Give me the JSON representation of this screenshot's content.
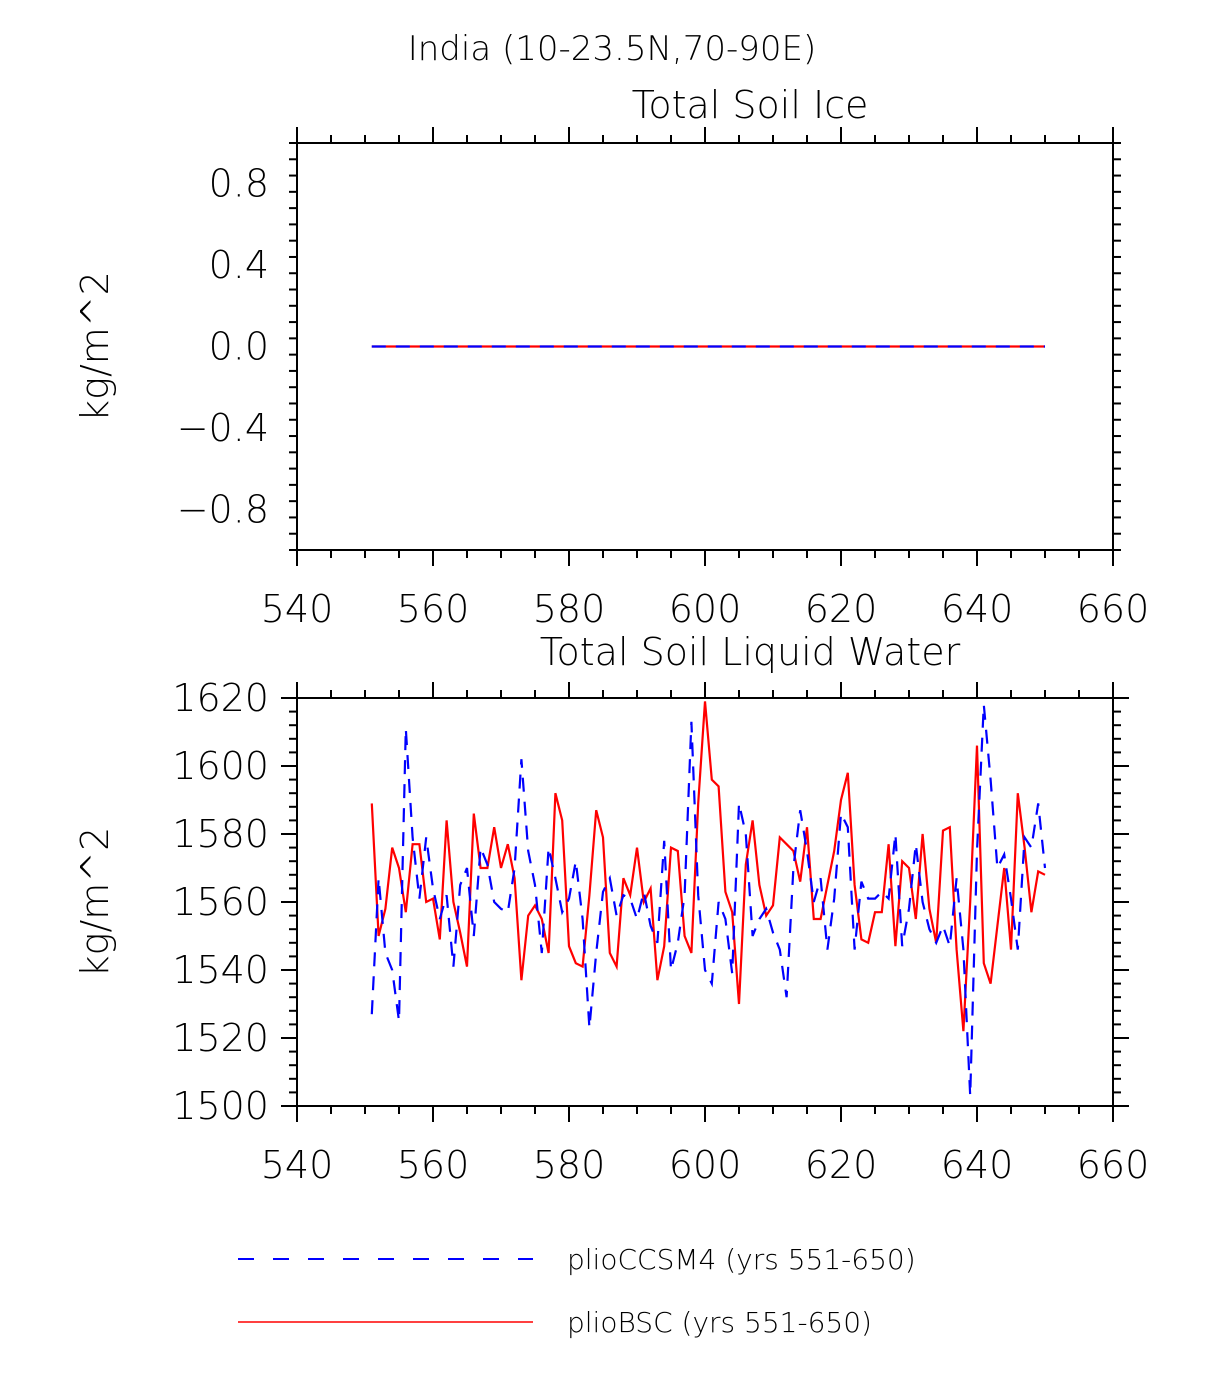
{
  "title": "India (10-23.5N,70-90E)",
  "colors": {
    "pliocesm4": "#0000ff",
    "pliobsc": "#ff0000",
    "axis": "#000000"
  },
  "legend": [
    {
      "label": "plioCCSM4 (yrs 551-650)",
      "color": "#0000ff",
      "dash": "dashed"
    },
    {
      "label": "plioBSC (yrs 551-650)",
      "color": "#ff0000",
      "dash": "solid"
    }
  ],
  "chart_data": [
    {
      "type": "line",
      "title": "Total Soil Ice",
      "ylabel": "kg/m^2",
      "xlabel": "",
      "xlim": [
        540,
        660
      ],
      "ylim": [
        -1.0,
        1.0
      ],
      "x_ticks": [
        540,
        560,
        580,
        600,
        620,
        640,
        660
      ],
      "x_tick_labels": [
        "540",
        "560",
        "580",
        "600",
        "620",
        "640",
        "660"
      ],
      "y_ticks": [
        0.8,
        0.4,
        0.0,
        -0.4,
        -0.8
      ],
      "y_tick_labels": [
        "0.8",
        "0.4",
        "0.0",
        "−0.4",
        "−0.8"
      ],
      "x_range": [
        551,
        650
      ],
      "series": [
        {
          "name": "plioBSC (yrs 551-650)",
          "constant": 0.0
        },
        {
          "name": "plioCCSM4 (yrs 551-650)",
          "constant": 0.0
        }
      ]
    },
    {
      "type": "line",
      "title": "Total Soil Liquid Water",
      "ylabel": "kg/m^2",
      "xlabel": "",
      "xlim": [
        540,
        660
      ],
      "ylim": [
        1500,
        1620
      ],
      "x_ticks": [
        540,
        560,
        580,
        600,
        620,
        640,
        660
      ],
      "x_tick_labels": [
        "540",
        "560",
        "580",
        "600",
        "620",
        "640",
        "660"
      ],
      "y_ticks": [
        1620,
        1600,
        1580,
        1560,
        1540,
        1520,
        1500
      ],
      "y_tick_labels": [
        "1620",
        "1600",
        "1580",
        "1560",
        "1540",
        "1520",
        "1500"
      ],
      "x_start": 551,
      "series": [
        {
          "name": "plioBSC (yrs 551-650)",
          "values": [
            1589,
            1550,
            1558,
            1576,
            1570,
            1557,
            1577,
            1577,
            1560,
            1561,
            1549,
            1584,
            1560,
            1551,
            1541,
            1586,
            1570,
            1570,
            1582,
            1570,
            1577,
            1567,
            1537,
            1556,
            1559,
            1555,
            1545,
            1592,
            1584,
            1547,
            1542,
            1541,
            1562,
            1587,
            1579,
            1545,
            1541,
            1567,
            1562,
            1576,
            1560,
            1564,
            1537,
            1547,
            1576,
            1575,
            1550,
            1545,
            1589,
            1619,
            1596,
            1594,
            1563,
            1557,
            1530,
            1571,
            1584,
            1565,
            1556,
            1559,
            1579,
            1577,
            1575,
            1566,
            1582,
            1555,
            1555,
            1565,
            1575,
            1590,
            1598,
            1565,
            1549,
            1548,
            1557,
            1557,
            1577,
            1547,
            1572,
            1570,
            1555,
            1580,
            1558,
            1548,
            1581,
            1582,
            1546,
            1522,
            1560,
            1606,
            1542,
            1536,
            1553,
            1570,
            1546,
            1592,
            1576,
            1557,
            1569,
            1568
          ]
        },
        {
          "name": "plioCCSM4 (yrs 551-650)",
          "values": [
            1527,
            1567,
            1545,
            1540,
            1525,
            1611,
            1579,
            1561,
            1579,
            1564,
            1555,
            1562,
            1541,
            1565,
            1570,
            1550,
            1576,
            1571,
            1560,
            1558,
            1557,
            1570,
            1602,
            1575,
            1565,
            1545,
            1576,
            1567,
            1557,
            1561,
            1572,
            1555,
            1523,
            1545,
            1563,
            1567,
            1556,
            1562,
            1561,
            1555,
            1563,
            1553,
            1548,
            1578,
            1540,
            1548,
            1562,
            1613,
            1562,
            1540,
            1536,
            1560,
            1555,
            1539,
            1589,
            1580,
            1550,
            1555,
            1558,
            1551,
            1546,
            1532,
            1570,
            1587,
            1575,
            1560,
            1567,
            1546,
            1561,
            1586,
            1582,
            1546,
            1566,
            1561,
            1561,
            1563,
            1561,
            1580,
            1547,
            1558,
            1577,
            1560,
            1552,
            1548,
            1553,
            1547,
            1567,
            1546,
            1503,
            1575,
            1618,
            1596,
            1570,
            1574,
            1561,
            1546,
            1579,
            1576,
            1589,
            1570
          ]
        }
      ]
    }
  ]
}
